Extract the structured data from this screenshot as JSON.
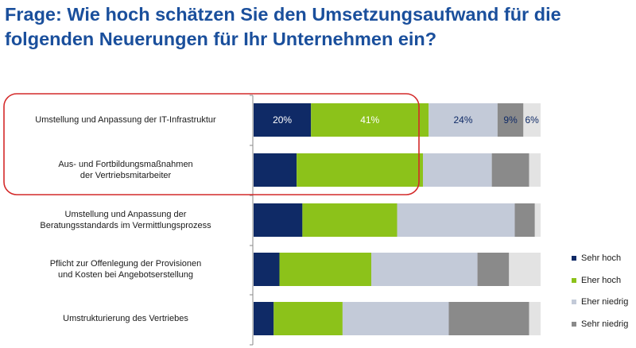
{
  "title": {
    "line1": "Frage: Wie hoch schätzen Sie den Umsetzungsaufwand für die",
    "line2": "folgenden Neuerungen für Ihr Unternehmen ein?"
  },
  "chart_data": {
    "type": "bar",
    "orientation": "horizontal",
    "stacked": true,
    "xlim": [
      0,
      100
    ],
    "grid": false,
    "legend_position": "bottom-right",
    "categories": [
      [
        "Umstellung und Anpassung der IT-Infrastruktur"
      ],
      [
        "Aus- und Fortbildungsmaßnahmen",
        "der Vertriebsmitarbeiter"
      ],
      [
        "Umstellung und Anpassung der",
        "Beratungsstandards im Vermittlungsprozess"
      ],
      [
        "Pflicht zur Offenlegung der Provisionen",
        "und Kosten bei Angebotserstellung"
      ],
      [
        "Umstrukturierung des Vertriebes"
      ]
    ],
    "series": [
      {
        "name": "Sehr hoch",
        "color": "#0f2a66",
        "values": [
          20,
          15,
          17,
          9,
          7
        ]
      },
      {
        "name": "Eher hoch",
        "color": "#8cc21a",
        "values": [
          41,
          44,
          33,
          32,
          24
        ]
      },
      {
        "name": "Eher niedrig",
        "color": "#c3cad8",
        "values": [
          24,
          24,
          41,
          37,
          37
        ]
      },
      {
        "name": "Sehr niedrig",
        "color": "#8a8a8a",
        "values": [
          9,
          13,
          7,
          11,
          28
        ]
      },
      {
        "name": "",
        "color": "#e3e3e3",
        "values": [
          6,
          4,
          2,
          11,
          4
        ]
      }
    ],
    "data_labels": [
      {
        "row": 0,
        "series": 0,
        "text": "20%"
      },
      {
        "row": 0,
        "series": 1,
        "text": "41%"
      },
      {
        "row": 0,
        "series": 2,
        "text": "24%"
      },
      {
        "row": 0,
        "series": 3,
        "text": "9%"
      },
      {
        "row": 0,
        "series": 4,
        "text": "6%"
      }
    ]
  },
  "highlight_color": "#d42a2a"
}
